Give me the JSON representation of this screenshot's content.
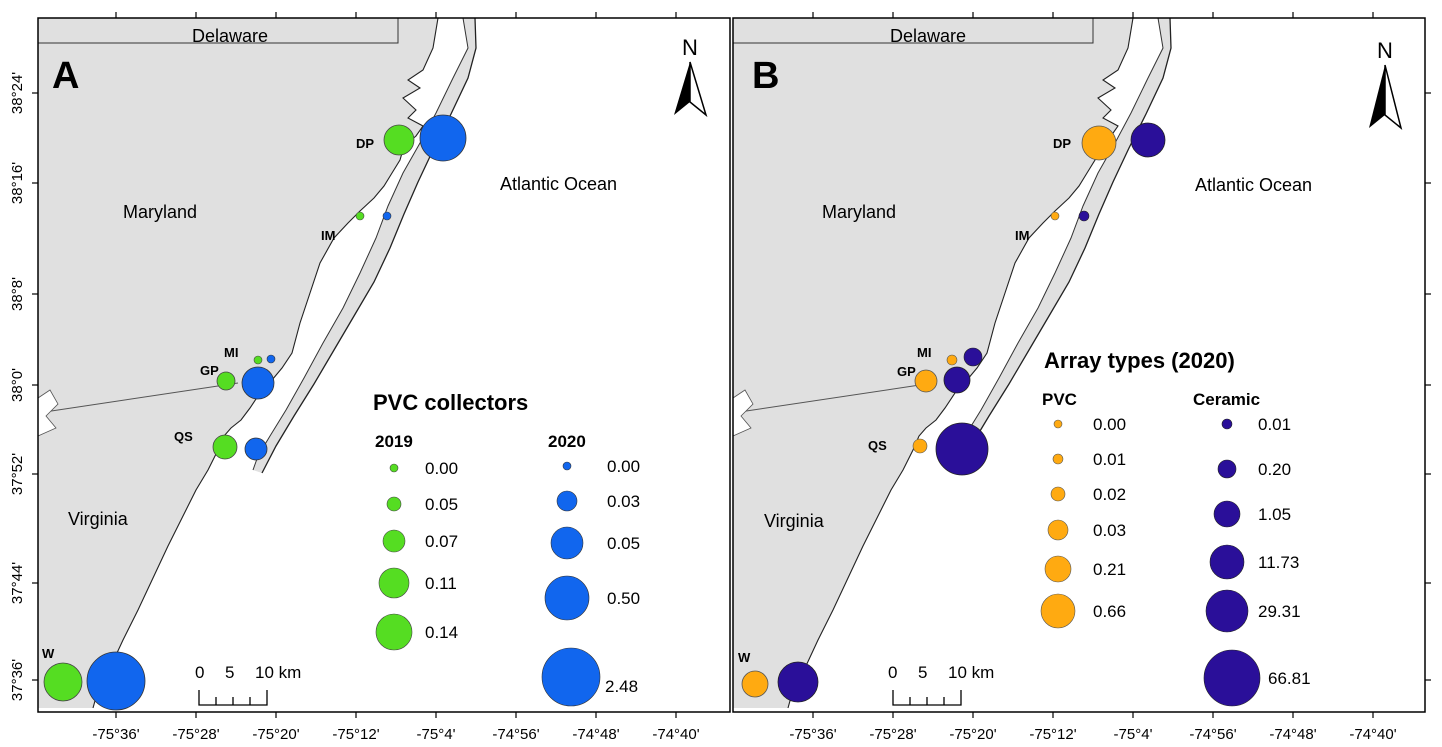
{
  "latitude_labels": [
    "38°24'",
    "38°16'",
    "38°8'",
    "38°0'",
    "37°52'",
    "37°44'",
    "37°36'"
  ],
  "longitude_labels": [
    "-75°36'",
    "-75°28'",
    "-75°20'",
    "-75°12'",
    "-75°4'",
    "-74°56'",
    "-74°48'",
    "-74°40'"
  ],
  "place_labels": {
    "delaware": "Delaware",
    "maryland": "Maryland",
    "virginia": "Virginia",
    "ocean": "Atlantic Ocean"
  },
  "north_label": "N",
  "site_labels": {
    "dp": "DP",
    "im": "IM",
    "mi": "MI",
    "gp": "GP",
    "qs": "QS",
    "w": "W"
  },
  "scalebar": {
    "label_0": "0",
    "label_5": "5",
    "label_10": "10 km"
  },
  "colors": {
    "land": "#e0e0e0",
    "pvc_2019": "#55dd22",
    "pvc_2020": "#1166ee",
    "pvc_array": "#ffaa11",
    "ceramic": "#2a0f99"
  },
  "panel_a": {
    "letter": "A",
    "legend_title": "PVC collectors",
    "col1_title": "2019",
    "col2_title": "2020",
    "col1_values": [
      "0.00",
      "0.05",
      "0.07",
      "0.11",
      "0.14"
    ],
    "col2_values": [
      "0.00",
      "0.03",
      "0.05",
      "0.50",
      "2.48"
    ]
  },
  "panel_b": {
    "letter": "B",
    "legend_title": "Array types (2020)",
    "col1_title": "PVC",
    "col2_title": "Ceramic",
    "col1_values": [
      "0.00",
      "0.01",
      "0.02",
      "0.03",
      "0.21",
      "0.66"
    ],
    "col2_values": [
      "0.01",
      "0.20",
      "1.05",
      "11.73",
      "29.31",
      "66.81"
    ]
  }
}
